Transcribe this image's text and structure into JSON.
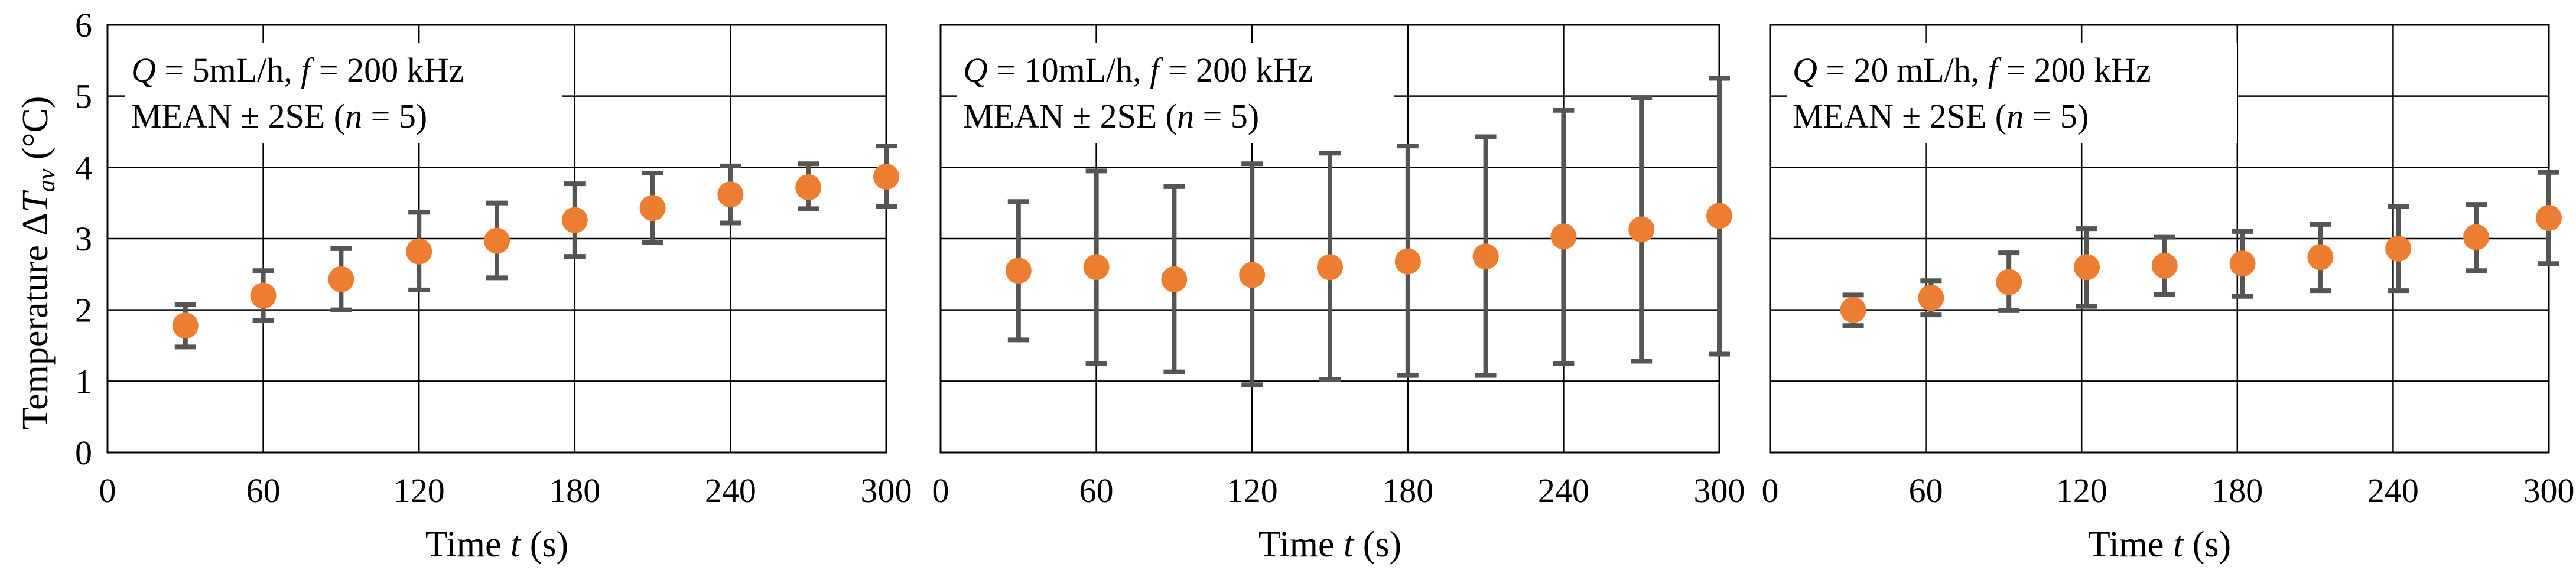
{
  "chart_data": [
    {
      "type": "scatter",
      "title": "",
      "legend": [
        "Q = 5mL/h,  f = 200 kHz",
        "MEAN ± 2SE (n = 5)"
      ],
      "legend_parts": {
        "line1_q": "Q",
        "line1_a": " = 5mL/h, ",
        "line1_f": "f",
        "line1_b": " = 200 kHz",
        "line2_a": "MEAN ± 2SE (",
        "line2_n": "n",
        "line2_b": " = 5)"
      },
      "xlabel": "Time t (s)",
      "ylabel": "Temperature ΔTav (°C)",
      "xlim": [
        0,
        300
      ],
      "ylim": [
        0,
        6
      ],
      "xticks": [
        0,
        60,
        120,
        180,
        240,
        300
      ],
      "yticks": [
        0,
        1,
        2,
        3,
        4,
        5,
        6
      ],
      "grid": true,
      "series": [
        {
          "name": "MEAN ± 2SE",
          "color": "#ed7d31",
          "x": [
            30,
            60,
            90,
            120,
            150,
            180,
            210,
            240,
            270,
            300
          ],
          "y": [
            1.78,
            2.2,
            2.43,
            2.82,
            2.97,
            3.26,
            3.43,
            3.62,
            3.72,
            3.87
          ],
          "err_low": [
            1.48,
            1.85,
            2.0,
            2.28,
            2.45,
            2.75,
            2.95,
            3.22,
            3.42,
            3.45
          ],
          "err_high": [
            2.08,
            2.55,
            2.86,
            3.37,
            3.5,
            3.77,
            3.92,
            4.02,
            4.05,
            4.3
          ]
        }
      ]
    },
    {
      "type": "scatter",
      "title": "",
      "legend": [
        "Q = 10mL/h,  f = 200 kHz",
        "MEAN ± 2SE (n = 5)"
      ],
      "legend_parts": {
        "line1_q": "Q",
        "line1_a": " = 10mL/h, ",
        "line1_f": "f",
        "line1_b": " = 200 kHz",
        "line2_a": "MEAN ± 2SE (",
        "line2_n": "n",
        "line2_b": " = 5)"
      },
      "xlabel": "Time t (s)",
      "ylabel": "",
      "xlim": [
        0,
        300
      ],
      "ylim": [
        0,
        6
      ],
      "xticks": [
        0,
        60,
        120,
        180,
        240,
        300
      ],
      "yticks": [],
      "grid": true,
      "series": [
        {
          "name": "MEAN ± 2SE",
          "color": "#ed7d31",
          "x": [
            30,
            60,
            90,
            120,
            150,
            180,
            210,
            240,
            270,
            300
          ],
          "y": [
            2.55,
            2.6,
            2.43,
            2.49,
            2.6,
            2.68,
            2.75,
            3.03,
            3.13,
            3.32
          ],
          "err_low": [
            1.58,
            1.25,
            1.13,
            0.95,
            1.02,
            1.08,
            1.08,
            1.25,
            1.28,
            1.38
          ],
          "err_high": [
            3.52,
            3.95,
            3.73,
            4.05,
            4.2,
            4.3,
            4.43,
            4.8,
            4.98,
            5.25
          ]
        }
      ]
    },
    {
      "type": "scatter",
      "title": "",
      "legend": [
        "Q = 20 mL/h,  f = 200 kHz",
        "MEAN ± 2SE (n = 5)"
      ],
      "legend_parts": {
        "line1_q": "Q",
        "line1_a": " = 20 mL/h, ",
        "line1_f": "f",
        "line1_b": " = 200 kHz",
        "line2_a": "MEAN ± 2SE (",
        "line2_n": "n",
        "line2_b": " = 5)"
      },
      "xlabel": "Time t (s)",
      "ylabel": "",
      "xlim": [
        0,
        300
      ],
      "ylim": [
        0,
        6
      ],
      "xticks": [
        0,
        60,
        120,
        180,
        240,
        300
      ],
      "yticks": [],
      "grid": true,
      "series": [
        {
          "name": "MEAN ± 2SE",
          "color": "#ed7d31",
          "x": [
            32,
            62,
            92,
            122,
            152,
            182,
            212,
            242,
            272,
            300
          ],
          "y": [
            2.0,
            2.17,
            2.39,
            2.6,
            2.62,
            2.65,
            2.74,
            2.86,
            3.02,
            3.29
          ],
          "err_low": [
            1.78,
            1.93,
            1.99,
            2.05,
            2.22,
            2.19,
            2.27,
            2.27,
            2.55,
            2.65
          ],
          "err_high": [
            2.21,
            2.41,
            2.8,
            3.14,
            3.02,
            3.1,
            3.2,
            3.45,
            3.48,
            3.93
          ]
        }
      ]
    }
  ],
  "axis_labels": {
    "y_prefix": "Temperature Δ",
    "y_symbol": "T",
    "y_subscript": "av",
    "y_unit": "  (°C)",
    "x_prefix": "Time ",
    "x_symbol": "t",
    "x_unit": " (s)"
  }
}
